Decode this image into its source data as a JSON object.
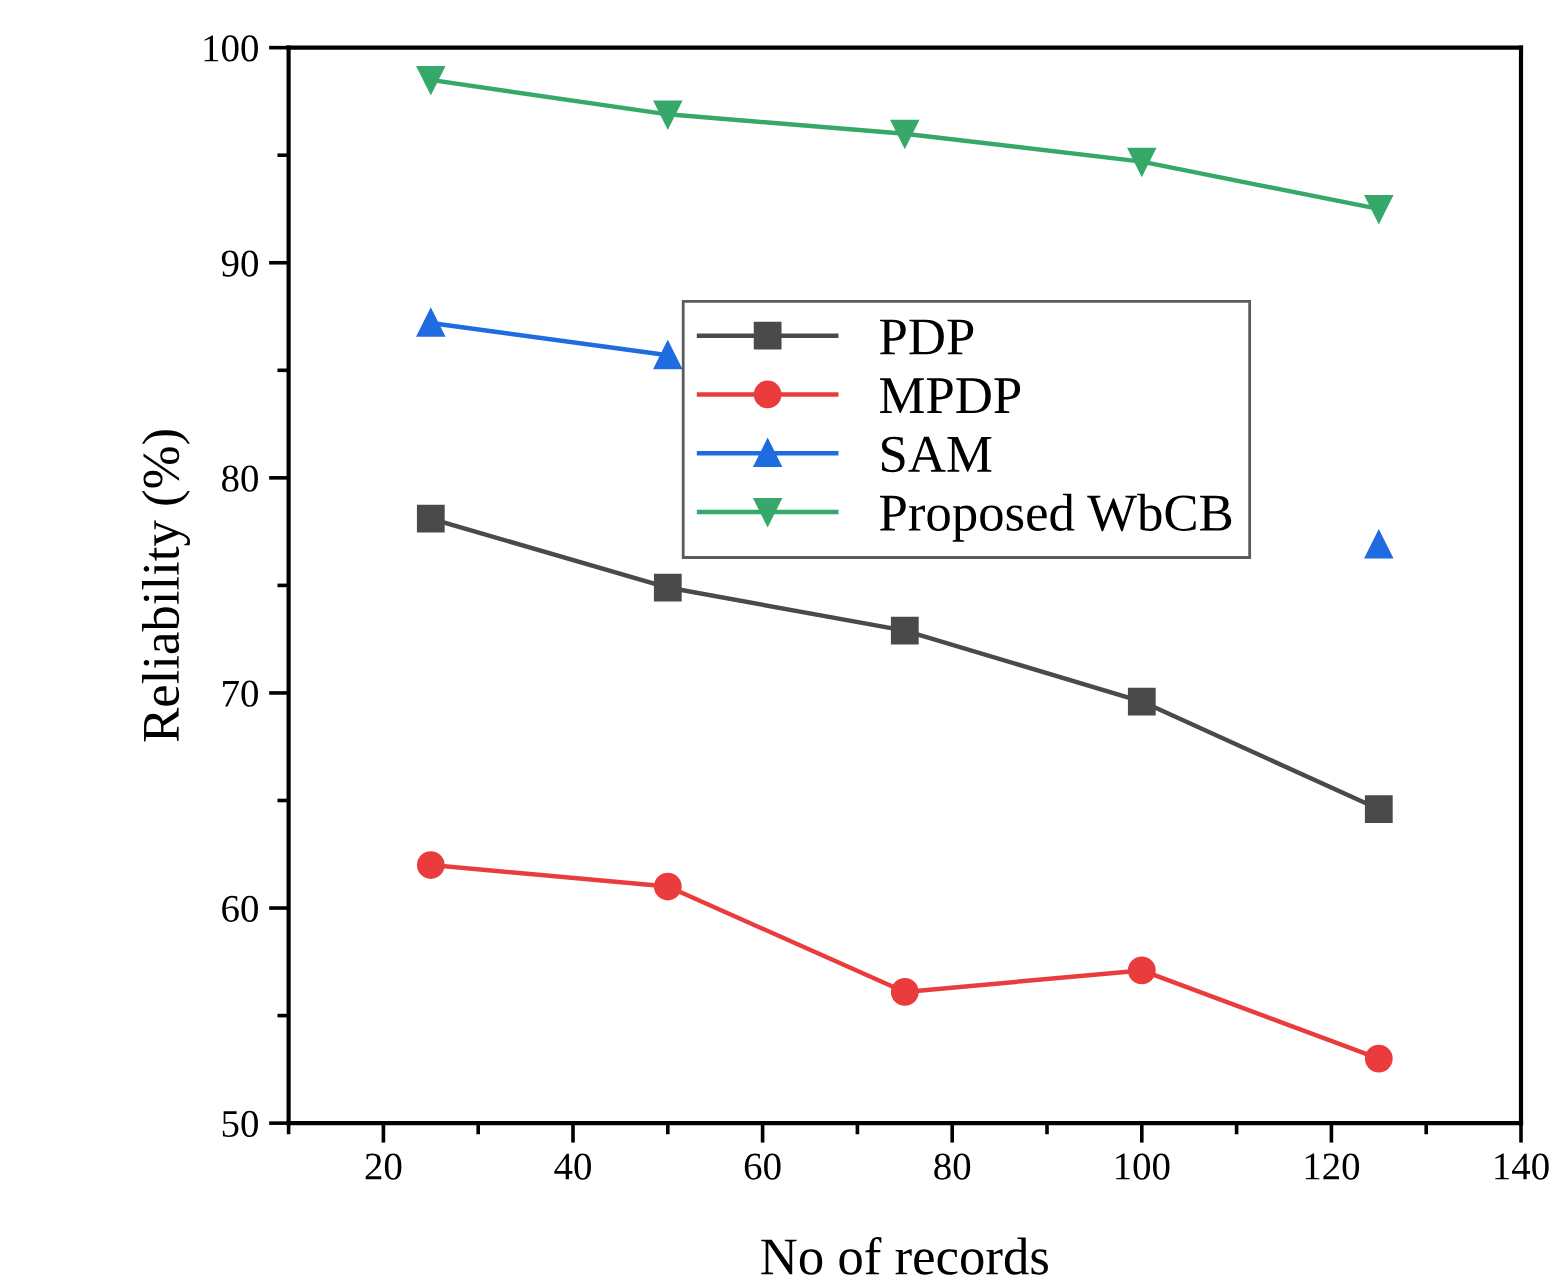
{
  "chart_data": {
    "type": "line",
    "xlabel": "No of records",
    "ylabel": "Reliability (%)",
    "x": [
      25,
      50,
      75,
      100,
      125
    ],
    "series": [
      {
        "name": "PDP",
        "color": "#4a4a4a",
        "marker": "square",
        "values": [
          78.1,
          74.9,
          72.9,
          69.6,
          64.6
        ]
      },
      {
        "name": "MPDP",
        "color": "#ea3c3c",
        "marker": "circle",
        "values": [
          62.0,
          61.0,
          56.1,
          57.1,
          53.0
        ]
      },
      {
        "name": "SAM",
        "color": "#1f6be0",
        "marker": "triangle",
        "values": [
          87.2,
          85.7,
          null,
          null,
          76.9
        ]
      },
      {
        "name": "Proposed WbCB",
        "color": "#36a96a",
        "marker": "triangle_down",
        "values": [
          98.5,
          96.9,
          96.0,
          94.7,
          92.5
        ]
      }
    ],
    "xlim": [
      10,
      140
    ],
    "xticks": [
      20,
      40,
      60,
      80,
      100,
      120,
      140
    ],
    "ylim": [
      50,
      100
    ],
    "yticks": [
      50,
      60,
      70,
      80,
      90,
      100
    ],
    "grid": false,
    "legend": "center",
    "line_style": "solid"
  }
}
